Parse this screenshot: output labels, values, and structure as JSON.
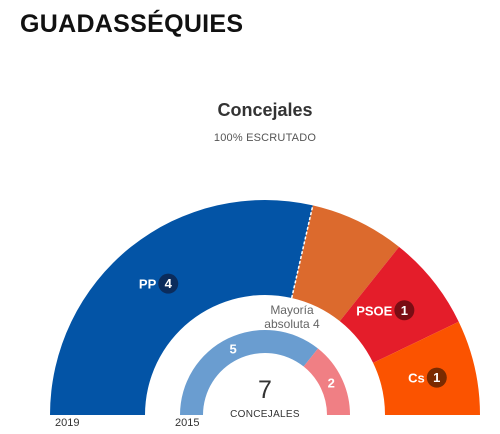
{
  "municipality": "GUADASSÉQUIES",
  "chart_data": [
    {
      "type": "pie",
      "title": "Concejales",
      "subtitle": "100% ESCRUTADO",
      "year": "2019",
      "total_seats": 7,
      "slices": [
        {
          "party": "PP",
          "seats": 4,
          "color": "#0354a6",
          "badge_color": "#0b2c5c",
          "labeled": true
        },
        {
          "party": "",
          "seats": 1,
          "color": "#dc6a2d",
          "labeled": false
        },
        {
          "party": "PSOE",
          "seats": 1,
          "color": "#e41d2a",
          "badge_color": "#7a0d14",
          "labeled": true
        },
        {
          "party": "Cs",
          "seats": 1,
          "color": "#fb5300",
          "badge_color": "#7a2a00",
          "labeled": true
        }
      ],
      "majority_line1": "Mayoría",
      "majority_line2": "absoluta 4"
    },
    {
      "type": "pie",
      "year": "2015",
      "total_seats": 7,
      "center_label": "CONCEJALES",
      "slices": [
        {
          "seats": 5,
          "color": "#6a9dd0"
        },
        {
          "seats": 2,
          "color": "#f07f84"
        }
      ]
    }
  ]
}
